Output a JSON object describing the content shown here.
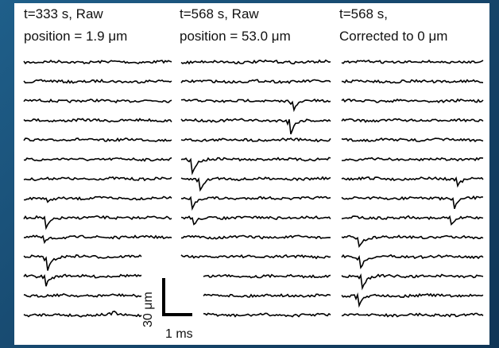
{
  "columns": [
    {
      "line1": "t=333 s, Raw",
      "line2": "position = 1.9 μm"
    },
    {
      "line1": "t=568 s, Raw",
      "line2": "position = 53.0 μm"
    },
    {
      "line1": "t=568 s,",
      "line2": "Corrected to 0 μm"
    }
  ],
  "scale": {
    "vertical_label": "30 μm",
    "horizontal_label": "1 ms"
  },
  "trace_color": "#000000",
  "background": "#ffffff"
}
